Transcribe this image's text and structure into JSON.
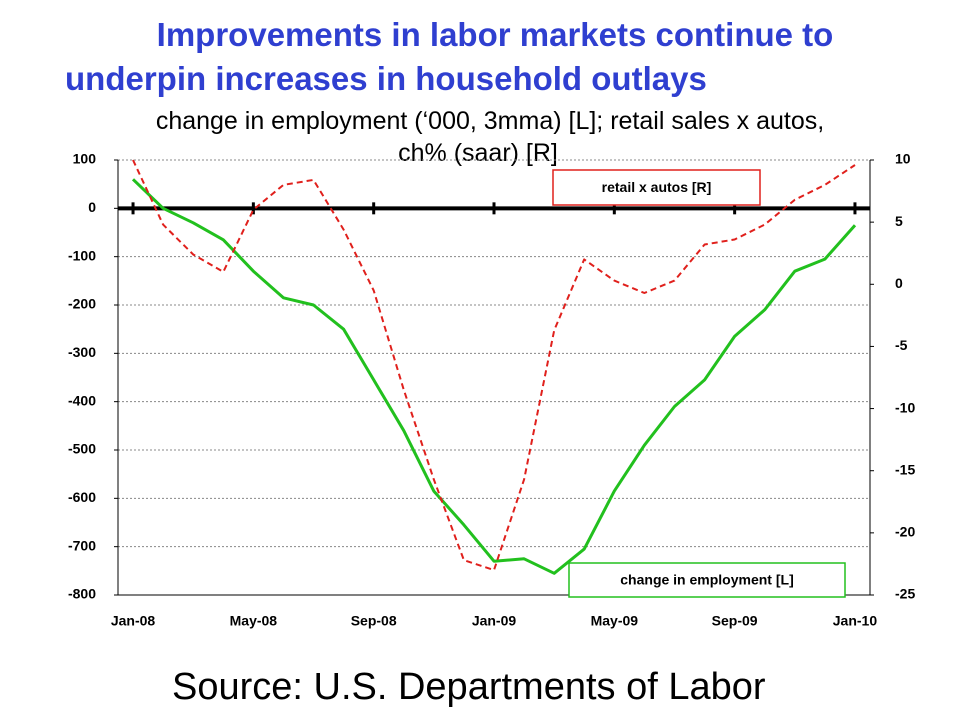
{
  "chart_data": {
    "type": "line",
    "title_lines": [
      "Improvements in labor markets continue to",
      "underpin increases in household outlays"
    ],
    "subtitle_lines": [
      "change in employment (‘000, 3mma) [L]; retail sales x autos,",
      "ch% (saar) [R]"
    ],
    "source": "Source: U.S. Departments of Labor",
    "categories": [
      "Jan-08",
      null,
      null,
      null,
      "May-08",
      null,
      null,
      null,
      "Sep-08",
      null,
      null,
      null,
      "Jan-09",
      null,
      null,
      null,
      "May-09",
      null,
      null,
      null,
      "Sep-09",
      null,
      null,
      null,
      "Jan-10"
    ],
    "series": [
      {
        "name": "change in employment [L]",
        "color": "#22c01e",
        "style": "solid",
        "values": [
          60,
          0,
          -30,
          -65,
          -130,
          -185,
          -200,
          -250,
          -355,
          -460,
          -585,
          -655,
          -730,
          -725,
          -755,
          -705,
          -585,
          -490,
          -410,
          -355,
          -265,
          -210,
          -130,
          -105,
          -35
        ]
      },
      {
        "name": "retail x autos [R]",
        "color": "#e0201c",
        "style": "dashed",
        "axis": "y2",
        "values": [
          10,
          4.8,
          2.4,
          1.0,
          6.0,
          8.0,
          8.4,
          4.4,
          -0.5,
          -8.5,
          -15.7,
          -22.2,
          -23,
          -15.7,
          -3.7,
          2.0,
          0.3,
          -0.7,
          0.3,
          3.2,
          3.6,
          4.8,
          6.8,
          8.0,
          9.6
        ]
      }
    ],
    "ylim": [
      -800,
      100
    ],
    "yticks": [
      100,
      0,
      -100,
      -200,
      -300,
      -400,
      -500,
      -600,
      -700,
      -800
    ],
    "y2lim": [
      -25,
      10
    ],
    "y2ticks": [
      10,
      5,
      0,
      -5,
      -10,
      -15,
      -20,
      -25
    ],
    "grid": true
  }
}
